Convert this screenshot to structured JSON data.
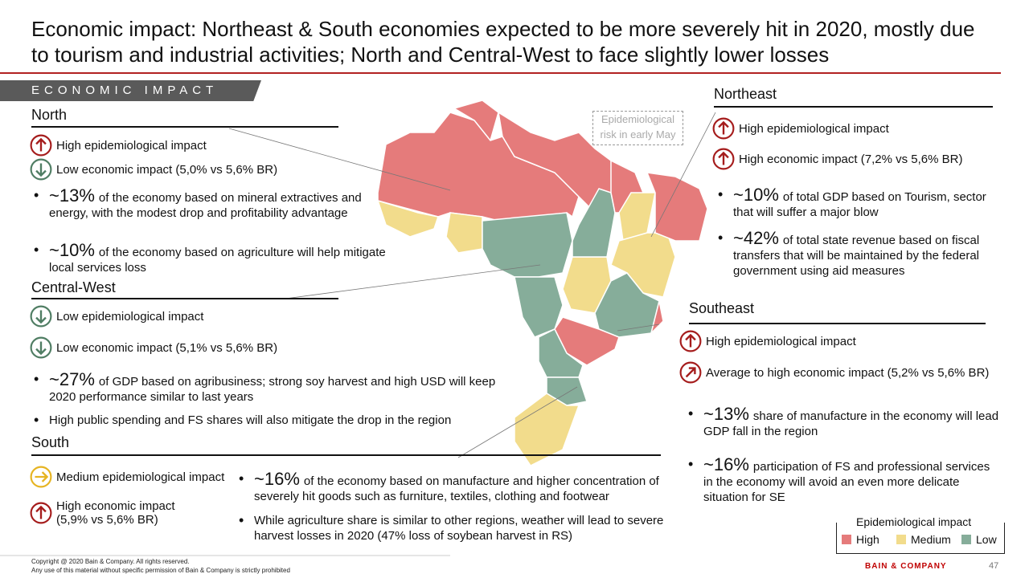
{
  "title": "Economic impact: Northeast & South economies expected to be more severely hit in 2020, mostly due to tourism and industrial activities; North and Central-West to face slightly lower losses",
  "section_tag": "ECONOMIC IMPACT",
  "map_note": "Epidemiological risk in early May",
  "regions": [
    {
      "name": "North",
      "indicators": [
        "High epidemiological impact",
        "Low economic impact (5,0% vs 5,6% BR)"
      ],
      "bullets": [
        {
          "highlight": "~13%",
          "text": "of the economy based on mineral extractives and energy, with the modest drop and profitability advantage"
        },
        {
          "highlight": "~10%",
          "text": "of the economy based on agriculture will help mitigate local services loss"
        }
      ]
    },
    {
      "name": "Central-West",
      "indicators": [
        "Low epidemiological impact",
        "Low economic impact (5,1% vs 5,6% BR)"
      ],
      "bullets": [
        {
          "highlight": "~27%",
          "text": "of GDP based on agribusiness; strong soy harvest and high USD will keep 2020 performance similar to last years"
        },
        {
          "text": "High public spending and FS shares will also mitigate the drop in the region"
        }
      ]
    },
    {
      "name": "South",
      "indicators": [
        "Medium epidemiological impact",
        "High economic impact (5,9% vs 5,6% BR)"
      ],
      "bullets": [
        {
          "highlight": "~16%",
          "text": "of the economy based on manufacture and higher concentration of severely hit goods such as furniture, textiles, clothing and footwear"
        },
        {
          "text": "While agriculture share is similar to other regions, weather will lead to severe harvest losses in 2020 (47% loss of soybean harvest in RS)"
        }
      ]
    },
    {
      "name": "Northeast",
      "indicators": [
        "High epidemiological impact",
        "High economic impact (7,2% vs 5,6% BR)"
      ],
      "bullets": [
        {
          "highlight": "~10%",
          "text": "of total GDP based on Tourism, sector that will suffer a major blow"
        },
        {
          "highlight": "~42%",
          "text": "of total state revenue based on fiscal transfers that will be maintained by the federal government using aid measures"
        }
      ]
    },
    {
      "name": "Southeast",
      "indicators": [
        "High epidemiological impact",
        "Average to high economic impact (5,2% vs 5,6% BR)"
      ],
      "bullets": [
        {
          "highlight": "~13%",
          "text": "share of manufacture in the economy will lead GDP fall in the region"
        },
        {
          "highlight": "~16%",
          "text": "participation of FS and professional services in the economy will avoid an even more delicate situation for SE"
        }
      ]
    }
  ],
  "legend": {
    "title": "Epidemiological impact",
    "items": [
      {
        "label": "High",
        "color": "#e57b7b"
      },
      {
        "label": "Medium",
        "color": "#f2dc8c"
      },
      {
        "label": "Low",
        "color": "#86ad9a"
      }
    ]
  },
  "footer": {
    "copyright": "Copyright @ 2020 Bain & Company. All rights reserved.",
    "notice": "Any use of this material without specific permission of Bain & Company is strictly prohibited",
    "brand": "BAIN & COMPANY",
    "page": "47"
  }
}
